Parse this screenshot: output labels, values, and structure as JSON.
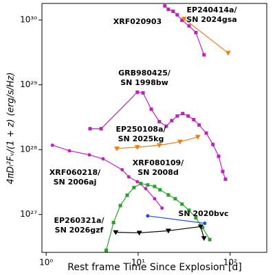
{
  "chart_data": {
    "type": "line",
    "xlabel": "Rest frame Time Since Explosion [d]",
    "ylabel": "4πDₗ²Fᵥ/(1 + z) (erg/s/Hz)",
    "xscale": "log",
    "yscale": "log",
    "xlim": [
      0.9,
      250
    ],
    "ylim": [
      2.6e+26,
      1.8e+30
    ],
    "xticks": [
      {
        "value": 1,
        "label": "10⁰"
      },
      {
        "value": 10,
        "label": "10¹"
      },
      {
        "value": 100,
        "label": "10²"
      }
    ],
    "yticks": [
      {
        "value": 1e+27,
        "label": "10²⁷"
      },
      {
        "value": 1e+28,
        "label": "10²⁸"
      },
      {
        "value": 1e+29,
        "label": "10²⁹"
      },
      {
        "value": 1e+30,
        "label": "10³⁰"
      }
    ],
    "series": [
      {
        "label": [
          "XRF020903"
        ],
        "color": "#c21fc2",
        "marker": "square",
        "x": [
          19.5,
          21.3,
          24.0,
          26.6,
          30.0,
          35.7,
          42.4,
          52
        ],
        "values": [
          1.65e+30,
          1.46e+30,
          1.36e+30,
          1.2e+30,
          9.9e+29,
          8.1e+29,
          6.4e+29,
          2.9e+29
        ]
      },
      {
        "label": [
          "EP240414a/",
          "SN 2024gsa"
        ],
        "color": "#f07c12",
        "marker": "triangle",
        "x": [
          31.6,
          95
        ],
        "values": [
          1.04e+30,
          3.1e+29
        ]
      },
      {
        "label": [
          "GRB980425/",
          "SN 1998bw"
        ],
        "color": "#c21fc2",
        "marker": "square",
        "x": [
          3.0,
          3.96,
          9.8,
          11.3,
          13.9,
          17,
          20.2,
          23.2,
          26.6,
          30.5,
          35,
          40.2,
          46,
          55,
          65,
          75,
          83,
          89
        ],
        "values": [
          2.1e+28,
          2.1e+28,
          7.7e+28,
          7.5e+28,
          4.2e+28,
          2.7e+28,
          2.3e+28,
          2.8e+28,
          3.3e+28,
          3.6e+28,
          3.3e+28,
          2.9e+28,
          2.4e+28,
          1.8e+28,
          1.2e+28,
          7.9e+27,
          4.6e+27,
          3.5e+27
        ]
      },
      {
        "label": [
          "EP250108a/",
          "SN 2025kg"
        ],
        "color": "#f07c12",
        "marker": "triangle",
        "x": [
          5.87,
          9.8,
          17,
          28.5,
          44.6
        ],
        "values": [
          1.04e+28,
          1.09e+28,
          1.17e+28,
          1.32e+28,
          1.57e+28
        ]
      },
      {
        "label": [
          "XRF060218/",
          "SN 2006aj"
        ],
        "color": "#c21fc2",
        "marker": "circle",
        "x": [
          1.17,
          1.79,
          2.95,
          4.16,
          6.7,
          7.9,
          9.8,
          12.1,
          15.1,
          18.2
        ],
        "values": [
          1.17e+28,
          9.6e+27,
          8.3e+27,
          7.2e+27,
          4.9e+27,
          3.8e+27,
          3.2e+27,
          2.5e+27,
          1.75e+27,
          1.25e+27
        ]
      },
      {
        "label": [
          "XRF080109/",
          "SN 2008d"
        ],
        "color": "#2ca02c",
        "marker": "square",
        "x": [
          4.5,
          5.4,
          6.4,
          7.6,
          9.0,
          10.7,
          12.7,
          15.1,
          17.3,
          21.3,
          25.3,
          30,
          35.7,
          42.4,
          50,
          60
        ],
        "values": [
          2.8e+26,
          7.5e+26,
          1.37e+27,
          1.98e+27,
          2.6e+27,
          3e+27,
          2.85e+27,
          2.7e+27,
          2.4e+27,
          2e+27,
          1.75e+27,
          1.44e+27,
          1.16e+27,
          8.9e+26,
          6.3e+26,
          4.1e+26
        ]
      },
      {
        "label": [
          "SN 2020bvc"
        ],
        "color": "#1f4fd8",
        "marker": "circle",
        "x": [
          12.7,
          53
        ],
        "values": [
          9.5e+26,
          7.3e+26
        ]
      },
      {
        "label": [
          "EP260321a/",
          "SN 2026gzf"
        ],
        "color": "#000000",
        "marker": "triangle",
        "x": [
          5.7,
          10.3,
          21.3,
          47.8,
          52
        ],
        "values": [
          5.3e+26,
          5.2e+26,
          5.6e+26,
          6.5e+26,
          4.3e+26
        ]
      }
    ]
  }
}
